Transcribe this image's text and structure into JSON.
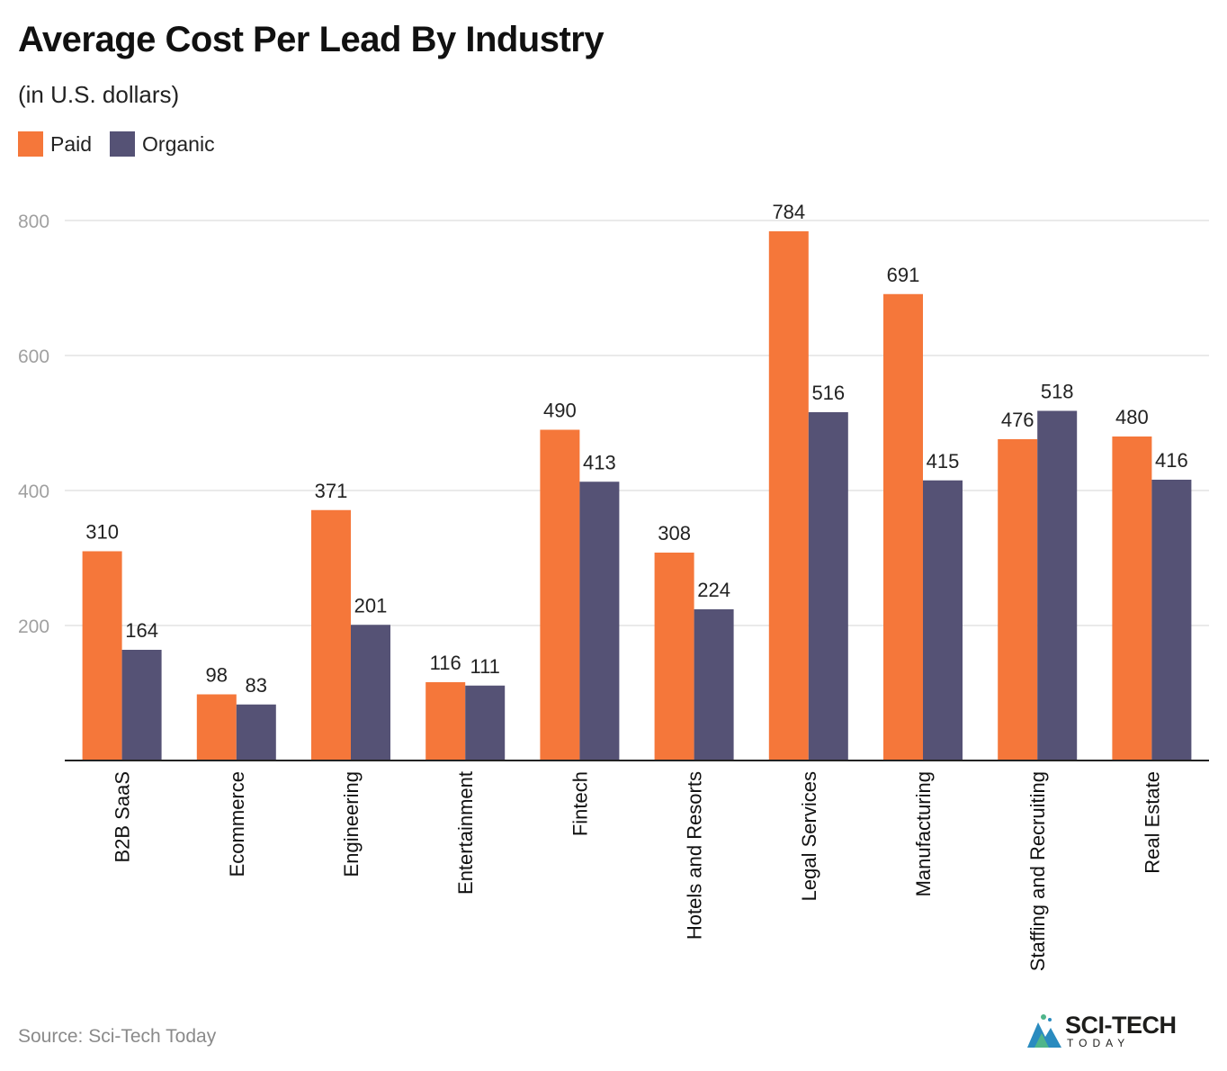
{
  "header": {
    "title": "Average Cost Per Lead By Industry",
    "subtitle": "(in U.S. dollars)"
  },
  "footer": {
    "source": "Source: Sci-Tech Today",
    "logo_text": "SCI-TECH",
    "logo_sub": "TODAY"
  },
  "colors": {
    "paid": "#f5773a",
    "organic": "#555275"
  },
  "chart_data": {
    "type": "bar",
    "title": "Average Cost Per Lead By Industry",
    "subtitle": "(in U.S. dollars)",
    "xlabel": "",
    "ylabel": "",
    "ylim": [
      0,
      800
    ],
    "yticks": [
      200,
      400,
      600,
      800
    ],
    "grid": true,
    "legend_position": "top-left",
    "categories": [
      "B2B SaaS",
      "Ecommerce",
      "Engineering",
      "Entertainment",
      "Fintech",
      "Hotels and Resorts",
      "Legal Services",
      "Manufacturing",
      "Staffing and Recruiting",
      "Real Estate"
    ],
    "series": [
      {
        "name": "Paid",
        "color": "#f5773a",
        "values": [
          310,
          98,
          371,
          116,
          490,
          308,
          784,
          691,
          476,
          480
        ]
      },
      {
        "name": "Organic",
        "color": "#555275",
        "values": [
          164,
          83,
          201,
          111,
          413,
          224,
          516,
          415,
          518,
          416
        ]
      }
    ]
  }
}
